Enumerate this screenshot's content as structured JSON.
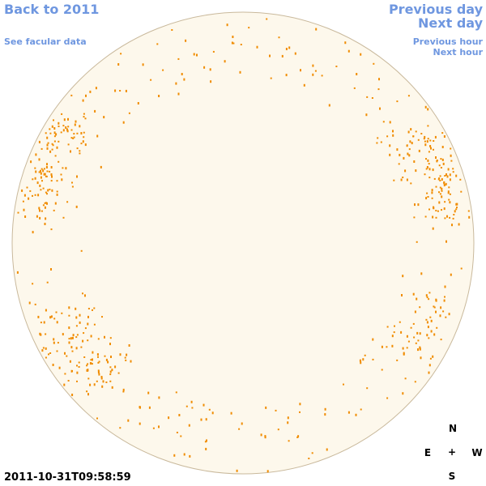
{
  "links": {
    "back": "Back to 2011",
    "facular": "See facular data",
    "previous_day": "Previous day",
    "next_day": "Next day",
    "previous_hour": "Previous hour",
    "next_hour": "Next hour"
  },
  "timestamp": "2011-10-31T09:58:59",
  "compass": {
    "north": "N",
    "east": "E",
    "center": "+",
    "west": "W",
    "south": "S"
  }
}
